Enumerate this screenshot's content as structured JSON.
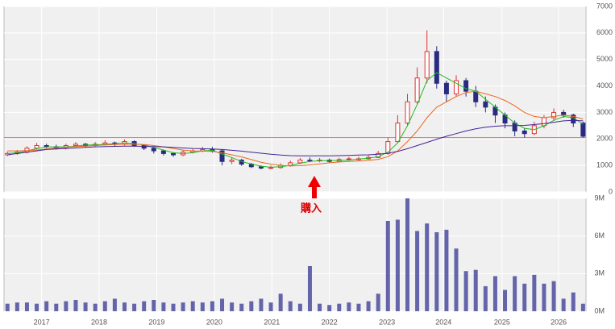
{
  "chart_data": {
    "type": "candlestick",
    "ohlc": [
      [
        1400,
        1520,
        1350,
        1450
      ],
      [
        1450,
        1580,
        1400,
        1500
      ],
      [
        1500,
        1720,
        1450,
        1650
      ],
      [
        1650,
        1850,
        1600,
        1750
      ],
      [
        1750,
        1820,
        1650,
        1700
      ],
      [
        1700,
        1780,
        1600,
        1650
      ],
      [
        1650,
        1820,
        1600,
        1750
      ],
      [
        1750,
        1880,
        1700,
        1800
      ],
      [
        1800,
        1850,
        1680,
        1750
      ],
      [
        1750,
        1880,
        1700,
        1800
      ],
      [
        1800,
        1950,
        1750,
        1850
      ],
      [
        1850,
        1900,
        1720,
        1800
      ],
      [
        1800,
        1980,
        1750,
        1900
      ],
      [
        1900,
        1950,
        1700,
        1750
      ],
      [
        1750,
        1800,
        1580,
        1650
      ],
      [
        1650,
        1700,
        1450,
        1550
      ],
      [
        1550,
        1600,
        1380,
        1450
      ],
      [
        1450,
        1500,
        1330,
        1400
      ],
      [
        1400,
        1580,
        1350,
        1500
      ],
      [
        1500,
        1620,
        1450,
        1550
      ],
      [
        1550,
        1700,
        1500,
        1600
      ],
      [
        1600,
        1700,
        1480,
        1550
      ],
      [
        1550,
        1600,
        1000,
        1150
      ],
      [
        1150,
        1300,
        1050,
        1200
      ],
      [
        1200,
        1250,
        980,
        1050
      ],
      [
        1050,
        1100,
        900,
        950
      ],
      [
        950,
        1000,
        850,
        900
      ],
      [
        900,
        1000,
        860,
        920
      ],
      [
        920,
        1080,
        880,
        1000
      ],
      [
        1000,
        1180,
        950,
        1100
      ],
      [
        1100,
        1280,
        1050,
        1200
      ],
      [
        1200,
        1300,
        1120,
        1180
      ],
      [
        1180,
        1280,
        1120,
        1200
      ],
      [
        1200,
        1260,
        1100,
        1150
      ],
      [
        1150,
        1290,
        1120,
        1220
      ],
      [
        1220,
        1320,
        1180,
        1250
      ],
      [
        1250,
        1330,
        1180,
        1250
      ],
      [
        1250,
        1380,
        1220,
        1300
      ],
      [
        1300,
        1550,
        1280,
        1450
      ],
      [
        1450,
        2050,
        1400,
        1900
      ],
      [
        1900,
        2900,
        1850,
        2600
      ],
      [
        2600,
        3700,
        2500,
        3400
      ],
      [
        3400,
        4700,
        3300,
        4300
      ],
      [
        4300,
        6100,
        4100,
        5300
      ],
      [
        5300,
        5500,
        3900,
        4100
      ],
      [
        4100,
        4200,
        3400,
        3700
      ],
      [
        3700,
        4400,
        3600,
        4200
      ],
      [
        4200,
        4300,
        3600,
        3800
      ],
      [
        3800,
        4000,
        3200,
        3400
      ],
      [
        3400,
        3600,
        3000,
        3200
      ],
      [
        3200,
        3300,
        2600,
        2900
      ],
      [
        2900,
        3000,
        2400,
        2600
      ],
      [
        2600,
        2700,
        2100,
        2300
      ],
      [
        2300,
        2400,
        2050,
        2200
      ],
      [
        2200,
        2650,
        2150,
        2500
      ],
      [
        2500,
        2900,
        2400,
        2800
      ],
      [
        2800,
        3150,
        2700,
        3000
      ],
      [
        3000,
        3100,
        2800,
        2900
      ],
      [
        2900,
        2950,
        2450,
        2600
      ],
      [
        2600,
        2650,
        2050,
        2100
      ]
    ],
    "up_color": "#dd3333",
    "down_color": "#2a2a80",
    "series": [
      {
        "color": "#22bb22",
        "values": [
          1450,
          1480,
          1550,
          1630,
          1700,
          1700,
          1700,
          1730,
          1770,
          1770,
          1800,
          1820,
          1850,
          1820,
          1770,
          1680,
          1580,
          1480,
          1450,
          1480,
          1550,
          1570,
          1430,
          1300,
          1150,
          1050,
          970,
          930,
          950,
          1000,
          1080,
          1150,
          1180,
          1180,
          1190,
          1200,
          1240,
          1270,
          1330,
          1500,
          1850,
          2500,
          3300,
          4200,
          4500,
          4300,
          4100,
          3900,
          3800,
          3500,
          3200,
          2900,
          2600,
          2400,
          2350,
          2500,
          2700,
          2850,
          2800,
          2550
        ]
      },
      {
        "color": "#ee6622",
        "values": [
          1550,
          1550,
          1560,
          1580,
          1620,
          1660,
          1690,
          1710,
          1730,
          1750,
          1770,
          1790,
          1800,
          1800,
          1790,
          1750,
          1700,
          1640,
          1580,
          1550,
          1540,
          1530,
          1480,
          1400,
          1320,
          1220,
          1120,
          1050,
          1000,
          980,
          990,
          1020,
          1060,
          1100,
          1130,
          1150,
          1170,
          1190,
          1230,
          1330,
          1550,
          1900,
          2300,
          2800,
          3200,
          3400,
          3600,
          3750,
          3800,
          3700,
          3600,
          3450,
          3250,
          3000,
          2850,
          2800,
          2850,
          2900,
          2850,
          2750
        ]
      },
      {
        "color": "#442299",
        "values": [
          1400,
          1450,
          1500,
          1550,
          1600,
          1620,
          1640,
          1660,
          1680,
          1700,
          1710,
          1720,
          1730,
          1730,
          1720,
          1710,
          1700,
          1680,
          1660,
          1640,
          1630,
          1620,
          1600,
          1570,
          1540,
          1500,
          1460,
          1420,
          1390,
          1370,
          1360,
          1360,
          1360,
          1360,
          1370,
          1380,
          1390,
          1400,
          1420,
          1460,
          1530,
          1630,
          1750,
          1870,
          1990,
          2100,
          2200,
          2300,
          2380,
          2440,
          2480,
          2500,
          2500,
          2510,
          2540,
          2580,
          2630,
          2680,
          2700,
          2680
        ]
      }
    ],
    "reference_line": {
      "value": 2050,
      "color": "#e07070"
    },
    "volume": {
      "color": "#6464aa",
      "values": [
        0.6,
        0.7,
        0.7,
        0.6,
        0.8,
        0.6,
        0.8,
        0.9,
        0.7,
        0.6,
        0.8,
        1.0,
        0.7,
        0.6,
        0.8,
        0.9,
        0.7,
        0.6,
        0.7,
        0.8,
        0.7,
        0.8,
        1.0,
        0.7,
        0.6,
        0.8,
        1.0,
        0.7,
        1.4,
        0.8,
        0.6,
        3.6,
        0.6,
        0.5,
        0.6,
        0.7,
        0.6,
        0.8,
        1.4,
        7.2,
        7.3,
        9.0,
        6.4,
        7.0,
        6.3,
        6.5,
        5.0,
        3.2,
        3.3,
        2.0,
        2.8,
        1.7,
        2.8,
        2.2,
        2.9,
        2.2,
        2.4,
        1.0,
        1.5,
        0.6
      ]
    },
    "annotation": "購入",
    "xlim": [
      -0.35,
      59.3
    ],
    "xticks": [
      {
        "value": 3.5,
        "label": "2017"
      },
      {
        "value": 9.4,
        "label": "2018"
      },
      {
        "value": 15.3,
        "label": "2019"
      },
      {
        "value": 21.2,
        "label": "2020"
      },
      {
        "value": 27.1,
        "label": "2021"
      },
      {
        "value": 33,
        "label": "2022"
      },
      {
        "value": 38.9,
        "label": "2023"
      },
      {
        "value": 44.7,
        "label": "2024"
      },
      {
        "value": 50.7,
        "label": "2025"
      },
      {
        "value": 56.5,
        "label": "2026"
      }
    ],
    "ylim": [
      0,
      7000
    ],
    "yticks": [
      0,
      1000,
      2000,
      3000,
      4000,
      5000,
      6000,
      7000
    ],
    "y2lim": [
      0,
      9
    ],
    "y2ticks": [
      {
        "value": 0,
        "label": "0M"
      },
      {
        "value": 3,
        "label": "3M"
      },
      {
        "value": 6,
        "label": "6M"
      },
      {
        "value": 9,
        "label": "9M"
      }
    ],
    "grid": true
  }
}
